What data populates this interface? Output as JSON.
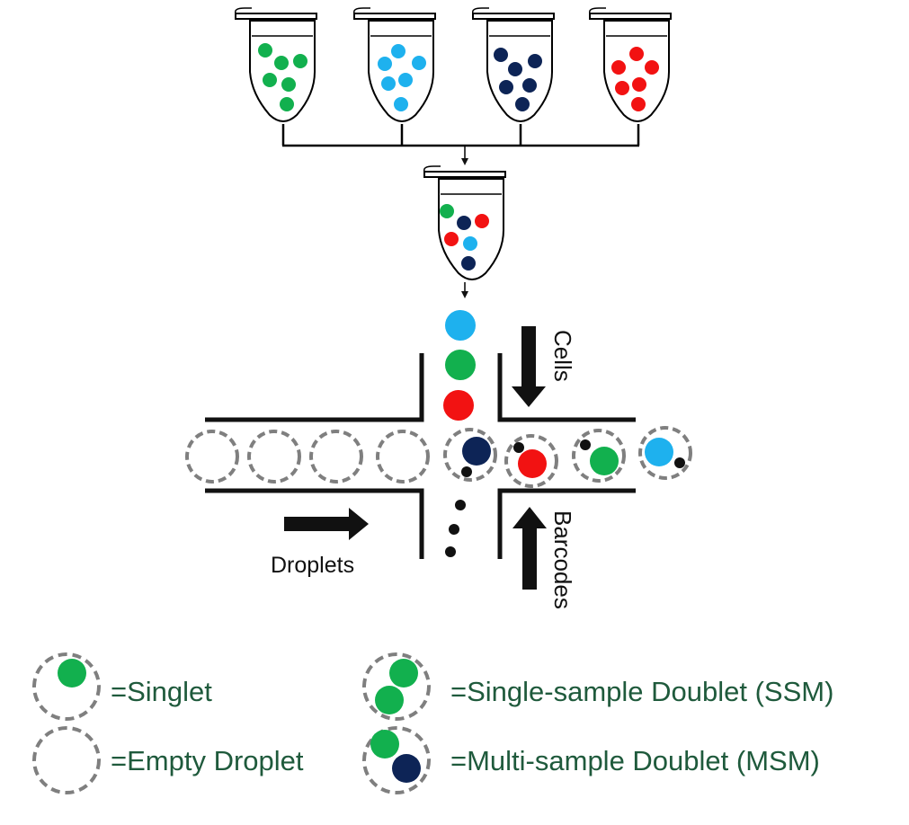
{
  "colors": {
    "green": "#12b04e",
    "light_blue": "#1eb1ee",
    "navy": "#0d2456",
    "red": "#f21212",
    "black": "#111111",
    "droplet_border": "#7f7f7f",
    "legend_text": "#1f5a3c"
  },
  "labels": {
    "cells": "Cells",
    "barcodes": "Barcodes",
    "droplets": "Droplets"
  },
  "legend": {
    "singlet": "=Singlet",
    "empty": "=Empty Droplet",
    "ssm": "=Single-sample  Doublet  (SSM)",
    "msm": "=Multi-sample  Doublet  (MSM)"
  }
}
